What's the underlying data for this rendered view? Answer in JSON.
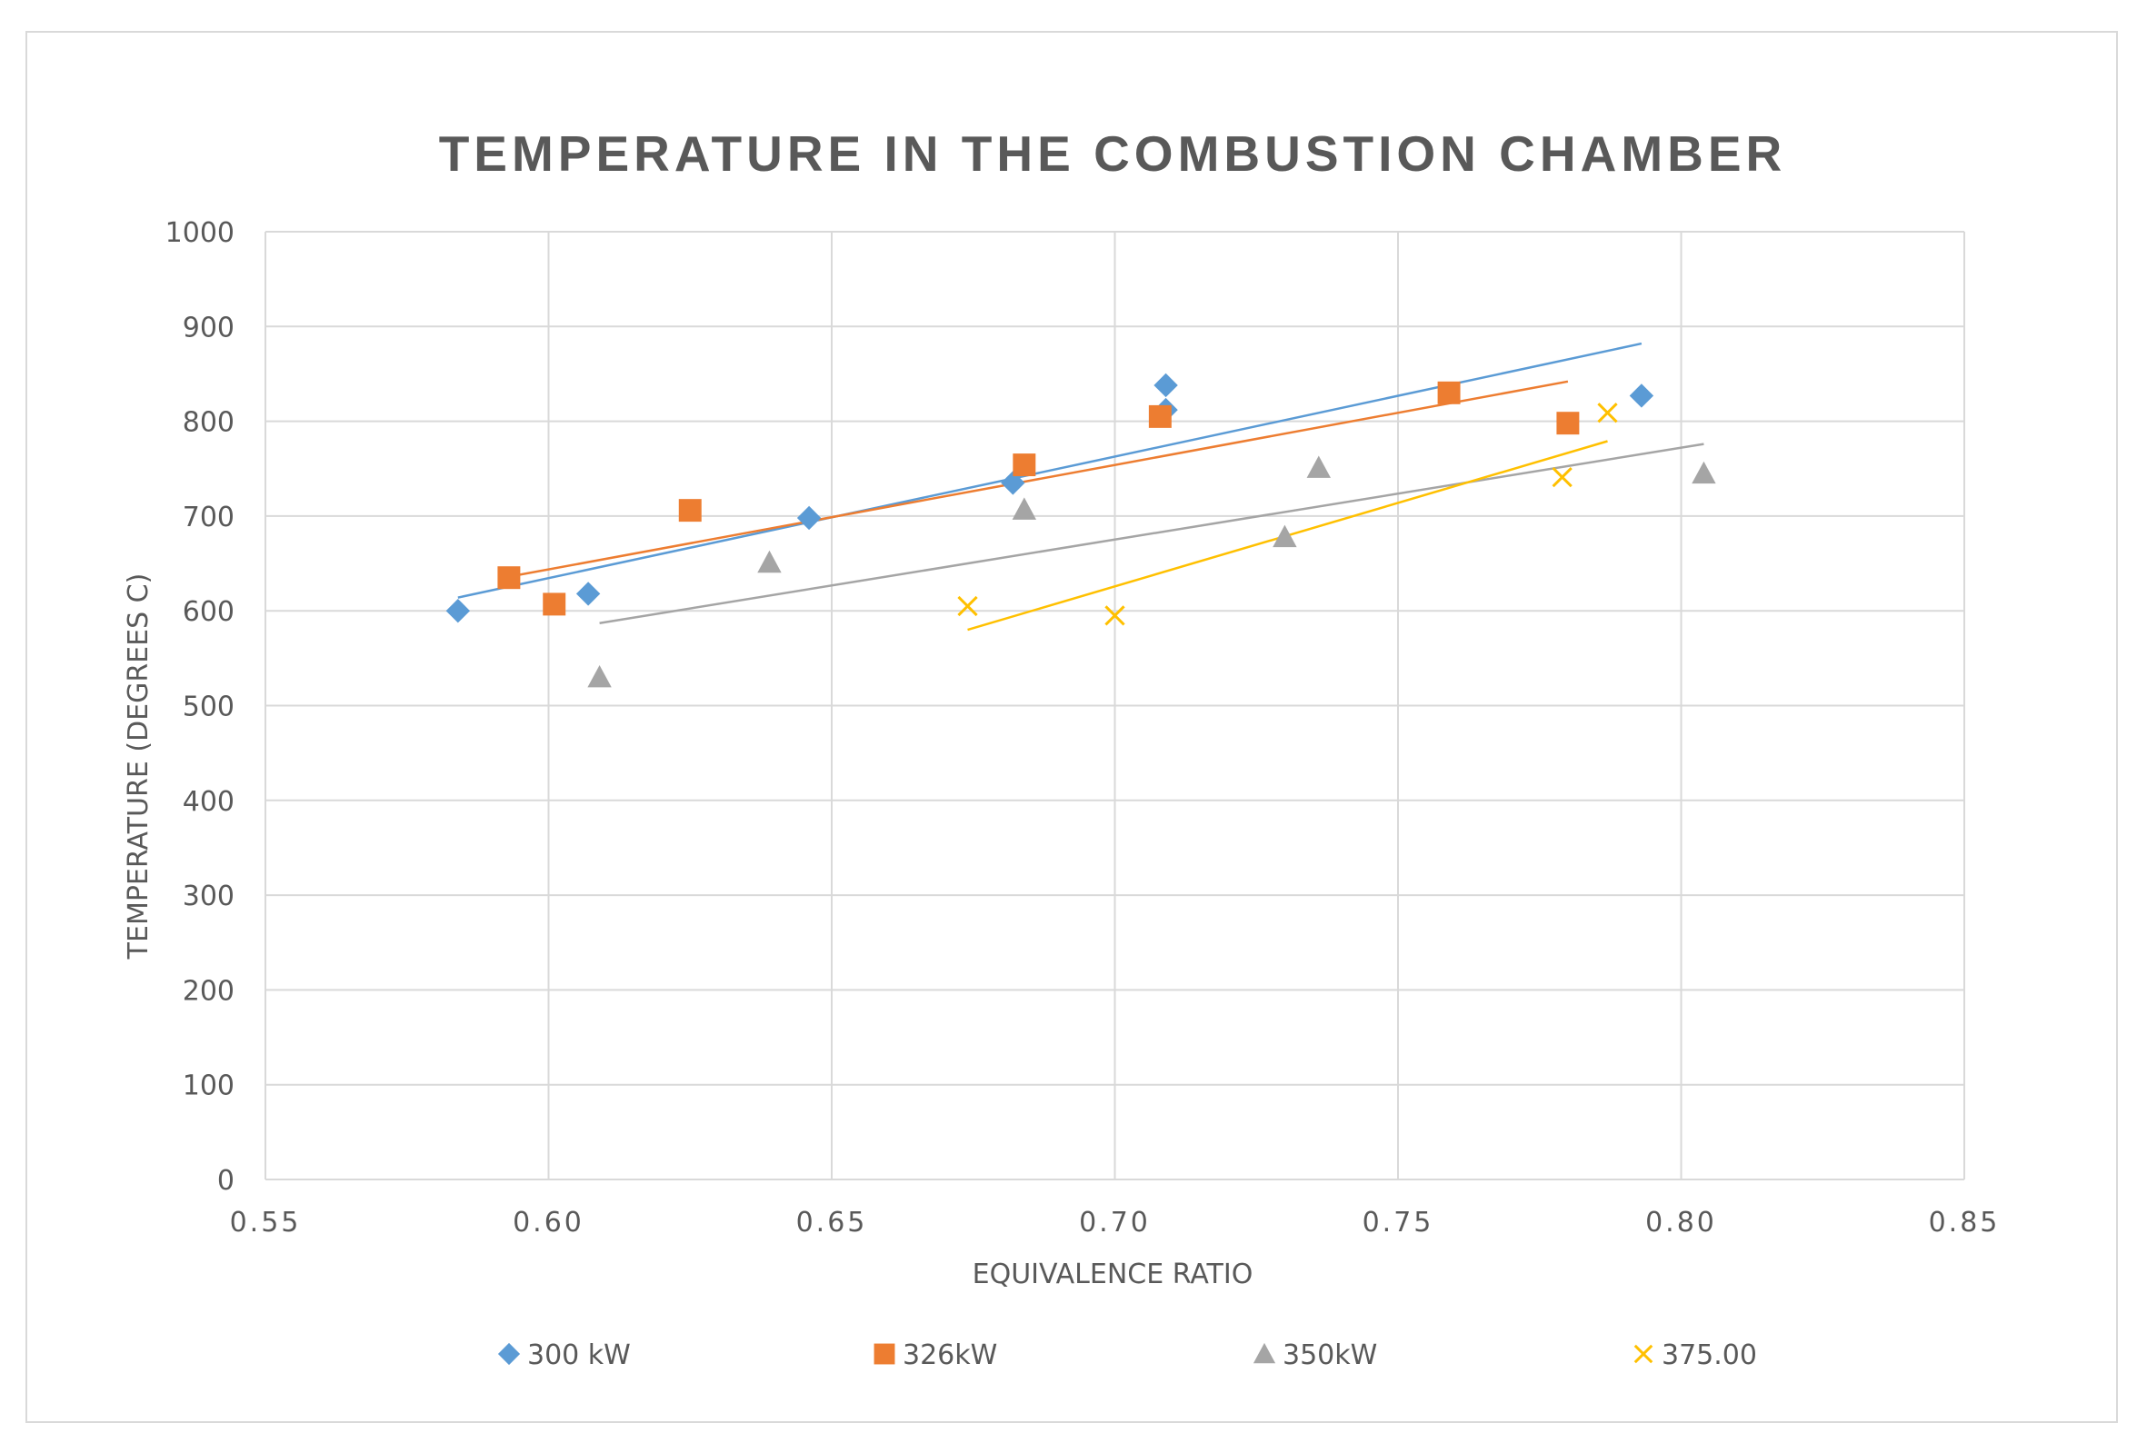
{
  "chart_data": {
    "type": "scatter",
    "title": "TEMPERATURE IN THE COMBUSTION CHAMBER",
    "xlabel": "EQUIVALENCE RATIO",
    "ylabel": "TEMPERATURE (DEGREES C)",
    "xlim": [
      0.55,
      0.85
    ],
    "ylim": [
      0,
      1000
    ],
    "xticks": [
      "0.55",
      "0.60",
      "0.65",
      "0.70",
      "0.75",
      "0.80",
      "0.85"
    ],
    "yticks": [
      "0",
      "100",
      "200",
      "300",
      "400",
      "500",
      "600",
      "700",
      "800",
      "900",
      "1000"
    ],
    "xtick_values": [
      0.55,
      0.6,
      0.65,
      0.7,
      0.75,
      0.8,
      0.85
    ],
    "ytick_values": [
      0,
      100,
      200,
      300,
      400,
      500,
      600,
      700,
      800,
      900,
      1000
    ],
    "grid": true,
    "legend_position": "bottom",
    "series": [
      {
        "name": "300 kW",
        "marker": "diamond",
        "color": "#5B9BD5",
        "points": [
          [
            0.584,
            600
          ],
          [
            0.607,
            618
          ],
          [
            0.646,
            698
          ],
          [
            0.682,
            735
          ],
          [
            0.709,
            838
          ],
          [
            0.709,
            812
          ],
          [
            0.793,
            827
          ]
        ],
        "trendline": [
          [
            0.584,
            614
          ],
          [
            0.793,
            882
          ]
        ]
      },
      {
        "name": "326kW",
        "marker": "square",
        "color": "#ED7D31",
        "points": [
          [
            0.593,
            635
          ],
          [
            0.601,
            607
          ],
          [
            0.625,
            706
          ],
          [
            0.684,
            754
          ],
          [
            0.708,
            805
          ],
          [
            0.759,
            830
          ],
          [
            0.78,
            798
          ]
        ],
        "trendline": [
          [
            0.593,
            636
          ],
          [
            0.78,
            842
          ]
        ]
      },
      {
        "name": "350kW",
        "marker": "triangle",
        "color": "#A5A5A5",
        "points": [
          [
            0.609,
            530
          ],
          [
            0.639,
            651
          ],
          [
            0.684,
            707
          ],
          [
            0.73,
            678
          ],
          [
            0.736,
            751
          ],
          [
            0.804,
            745
          ]
        ],
        "trendline": [
          [
            0.609,
            587
          ],
          [
            0.804,
            776
          ]
        ]
      },
      {
        "name": "375.00",
        "marker": "x",
        "color": "#FFC000",
        "points": [
          [
            0.674,
            605
          ],
          [
            0.7,
            595
          ],
          [
            0.779,
            741
          ],
          [
            0.787,
            809
          ]
        ],
        "trendline": [
          [
            0.674,
            580
          ],
          [
            0.787,
            779
          ]
        ]
      }
    ]
  }
}
